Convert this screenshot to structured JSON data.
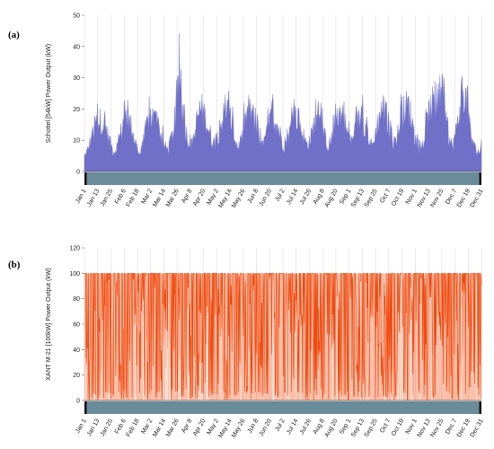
{
  "chart_data": [
    {
      "type": "area",
      "panel_label": "(a)",
      "ylabel": "Schottel [54kW] Power Output (kW)",
      "ylim": [
        0,
        50
      ],
      "yticks": [
        0,
        10,
        20,
        30,
        40,
        50
      ],
      "grid": true,
      "color": "#7070c8",
      "x_tick_labels": [
        "Jan 1",
        "Jan 13",
        "Jan 25",
        "Feb 6",
        "Feb 18",
        "Mar 2",
        "Mar 14",
        "Mar 26",
        "Apr 8",
        "Apr 20",
        "May 2",
        "May 14",
        "May 26",
        "Jun 8",
        "Jun 20",
        "Jul 2",
        "Jul 14",
        "Jul 26",
        "Aug 8",
        "Aug 20",
        "Sep 1",
        "Sep 13",
        "Sep 25",
        "Oct 7",
        "Oct 19",
        "Nov 1",
        "Nov 13",
        "Nov 25",
        "Dec 7",
        "Dec 19",
        "Dec 31"
      ],
      "daily_envelope": [
        6,
        9,
        14,
        19,
        21,
        20,
        17,
        12,
        8,
        10,
        16,
        22,
        21,
        18,
        12,
        7,
        10,
        18,
        23,
        22,
        19,
        15,
        10,
        9,
        14,
        20,
        39,
        22,
        16,
        10,
        12,
        22,
        26,
        23,
        18,
        13,
        11,
        17,
        22,
        26,
        22,
        16,
        10,
        12,
        20,
        25,
        24,
        19,
        13,
        10,
        15,
        21,
        22,
        19,
        14,
        10,
        14,
        20,
        23,
        20,
        15,
        11,
        13,
        19,
        22,
        19,
        14,
        10,
        14,
        21,
        24,
        22,
        17,
        12,
        14,
        20,
        22,
        19,
        14,
        10,
        16,
        23,
        26,
        22,
        17,
        11,
        15,
        22,
        26,
        27,
        20,
        12,
        8,
        11,
        20,
        26,
        28,
        24,
        36,
        22,
        14,
        10,
        16,
        25,
        34,
        28,
        16,
        10,
        8,
        9
      ]
    },
    {
      "type": "area",
      "panel_label": "(b)",
      "ylabel": "XANT M-21 [100kW] Power Output (kW)",
      "ylim": [
        0,
        120
      ],
      "yticks": [
        0,
        20,
        40,
        60,
        80,
        100,
        120
      ],
      "grid": true,
      "color": "#f04a0e",
      "max_value": 100,
      "x_tick_labels": [
        "Jan 1",
        "Jan 13",
        "Jan 25",
        "Feb 6",
        "Feb 18",
        "Mar 2",
        "Mar 14",
        "Mar 26",
        "Apr 8",
        "Apr 20",
        "May 2",
        "May 14",
        "May 26",
        "Jun 8",
        "Jun 20",
        "Jul 2",
        "Jul 14",
        "Jul 26",
        "Aug 8",
        "Aug 20",
        "Sep 1",
        "Sep 13",
        "Sep 25",
        "Oct 7",
        "Oct 19",
        "Nov 1",
        "Nov 13",
        "Nov 25",
        "Dec 7",
        "Dec 19",
        "Dec 31"
      ]
    }
  ]
}
